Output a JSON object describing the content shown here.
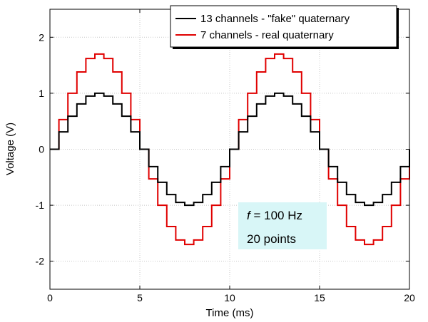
{
  "chart_data": {
    "type": "line",
    "title": "",
    "xlabel": "Time (ms)",
    "ylabel": "Voltage (V)",
    "xlim": [
      0,
      20
    ],
    "ylim": [
      -2.5,
      2.5
    ],
    "xticks": [
      0,
      5,
      10,
      15,
      20
    ],
    "yticks": [
      -2,
      -1,
      0,
      1,
      2
    ],
    "xtick_labels": [
      "0",
      "5",
      "10",
      "15",
      "20"
    ],
    "ytick_labels": [
      "-2",
      "-1",
      "0",
      "1",
      "2"
    ],
    "grid": true,
    "legend_position": "top-right",
    "step": "post",
    "series": [
      {
        "name": "13 channels - \"fake\" quaternary",
        "color": "#000000",
        "x": [
          0,
          0.5,
          1,
          1.5,
          2,
          2.5,
          3,
          3.5,
          4,
          4.5,
          5,
          5.5,
          6,
          6.5,
          7,
          7.5,
          8,
          8.5,
          9,
          9.5,
          10,
          10.5,
          11,
          11.5,
          12,
          12.5,
          13,
          13.5,
          14,
          14.5,
          15,
          15.5,
          16,
          16.5,
          17,
          17.5,
          18,
          18.5,
          19,
          19.5,
          20
        ],
        "y": [
          0,
          0.31,
          0.59,
          0.81,
          0.95,
          1.0,
          0.95,
          0.81,
          0.59,
          0.31,
          0,
          -0.31,
          -0.59,
          -0.81,
          -0.95,
          -1.0,
          -0.95,
          -0.81,
          -0.59,
          -0.31,
          0,
          0.31,
          0.59,
          0.81,
          0.95,
          1.0,
          0.95,
          0.81,
          0.59,
          0.31,
          0,
          -0.31,
          -0.59,
          -0.81,
          -0.95,
          -1.0,
          -0.95,
          -0.81,
          -0.59,
          -0.31,
          0
        ]
      },
      {
        "name": "7 channels - real quaternary",
        "color": "#e00000",
        "x": [
          0,
          0.5,
          1,
          1.5,
          2,
          2.5,
          3,
          3.5,
          4,
          4.5,
          5,
          5.5,
          6,
          6.5,
          7,
          7.5,
          8,
          8.5,
          9,
          9.5,
          10,
          10.5,
          11,
          11.5,
          12,
          12.5,
          13,
          13.5,
          14,
          14.5,
          15,
          15.5,
          16,
          16.5,
          17,
          17.5,
          18,
          18.5,
          19,
          19.5,
          20
        ],
        "y": [
          0,
          0.53,
          1.0,
          1.38,
          1.62,
          1.7,
          1.62,
          1.38,
          1.0,
          0.53,
          0,
          -0.53,
          -1.0,
          -1.38,
          -1.62,
          -1.7,
          -1.62,
          -1.38,
          -1.0,
          -0.53,
          0,
          0.53,
          1.0,
          1.38,
          1.62,
          1.7,
          1.62,
          1.38,
          1.0,
          0.53,
          0,
          -0.53,
          -1.0,
          -1.38,
          -1.62,
          -1.7,
          -1.62,
          -1.38,
          -1.0,
          -0.53,
          0
        ]
      }
    ],
    "annotation": {
      "f_symbol": "f",
      "f_value": " = 100 Hz",
      "points": "20 points",
      "background": "#d8f6f7"
    }
  }
}
